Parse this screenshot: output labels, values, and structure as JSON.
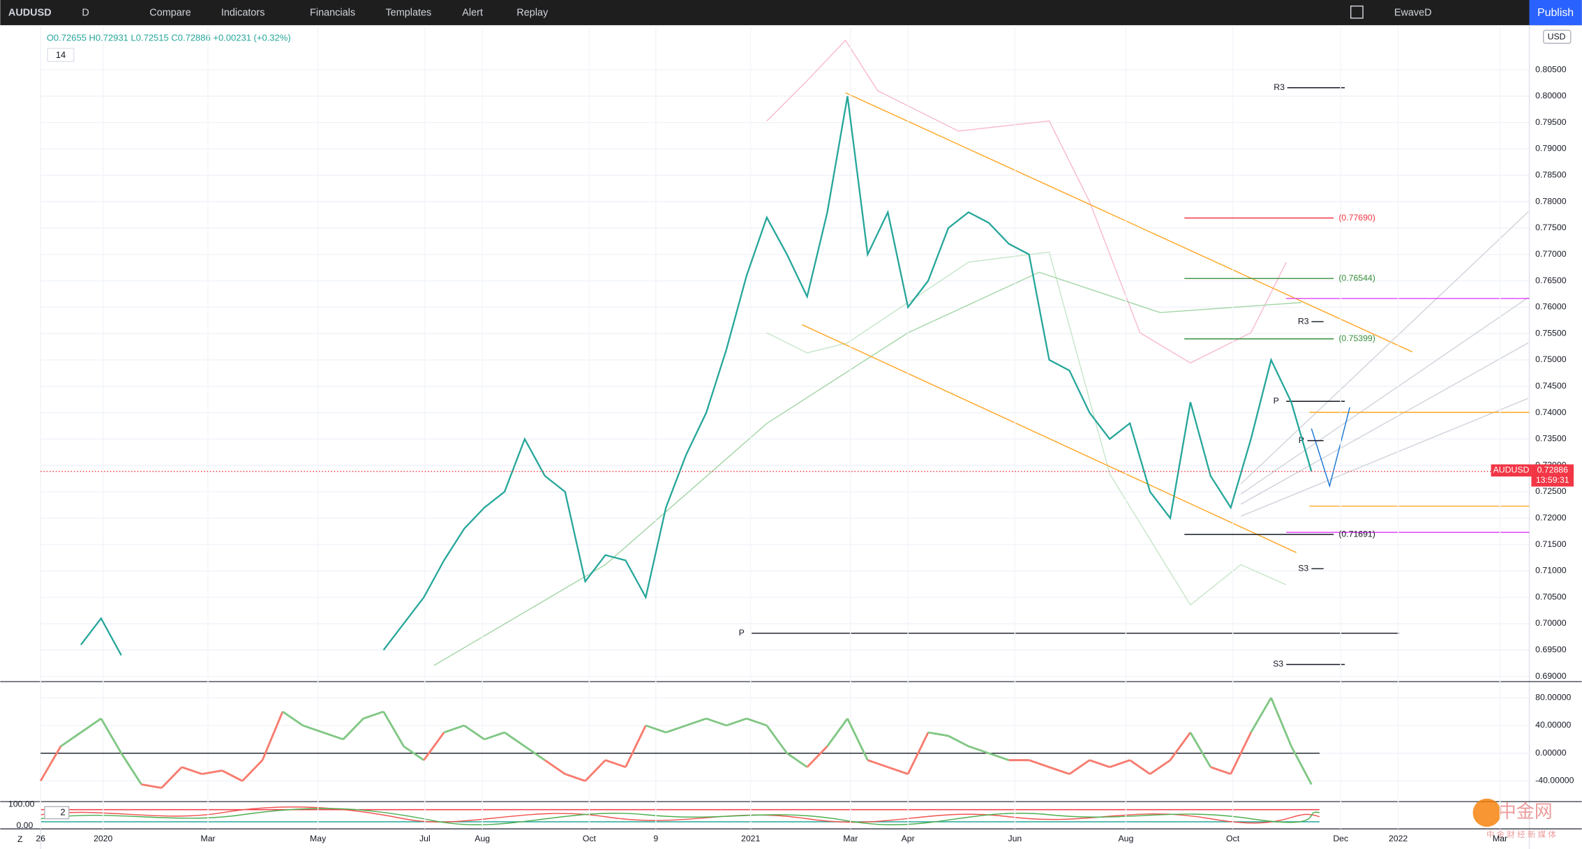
{
  "toolbar": {
    "symbol": "AUDUSD",
    "interval": "D",
    "buttons": [
      "Compare",
      "Indicators",
      "Financials",
      "Templates",
      "Alert",
      "Replay"
    ],
    "layout_name": "EwaveD",
    "publish": "Publish"
  },
  "legend": {
    "ohlc": "O0.72655 H0.72931 L0.72515 C0.72886 +0.00231 (+0.32%)",
    "length": "14"
  },
  "currency": "USD",
  "price_tag": {
    "symbol": "AUDUSD",
    "price": "0.72886",
    "countdown": "13:59:31"
  },
  "pivot_labels": [
    "R3",
    "R3",
    "P",
    "P",
    "P",
    "S3",
    "S3"
  ],
  "x_axis_labels": [
    "26",
    "2020",
    "Mar",
    "May",
    "Jul",
    "Aug",
    "Oct",
    "9",
    "2021",
    "Mar",
    "Apr",
    "Jun",
    "Aug",
    "Oct",
    "Dec",
    "2022",
    "Mar"
  ],
  "stoch_panel": {
    "ticks": [
      "100.00",
      "0.00"
    ],
    "label": "2"
  },
  "corner": "Z",
  "watermark": {
    "title": "中金网",
    "subtitle": "中 金 财 经 新 媒 体"
  },
  "chart_data": [
    {
      "type": "line",
      "color": "#26a69a",
      "values": [
        null,
        null,
        0.696,
        0.701,
        0.694,
        null,
        null,
        null,
        null,
        null,
        null,
        null,
        null,
        null,
        null,
        null,
        null,
        0.695,
        0.7,
        0.705,
        0.712,
        0.718,
        0.722,
        0.725,
        0.735,
        0.728,
        0.725,
        0.708,
        0.713,
        0.712,
        0.705,
        0.722,
        0.732,
        0.74,
        0.752,
        0.766,
        0.777,
        0.77,
        0.762,
        0.778,
        0.8,
        0.77,
        0.778,
        0.76,
        0.765,
        0.775,
        0.778,
        0.776,
        0.772,
        0.77,
        0.75,
        0.748,
        0.74,
        0.735,
        0.738,
        0.725,
        0.72,
        0.742,
        0.728,
        0.722,
        0.735,
        0.75,
        0.742,
        0.72886
      ],
      "ylim": [
        0.6892,
        0.8125
      ],
      "yticks": [
        {
          "value": 0.69,
          "label": "0.69000"
        },
        {
          "value": 0.695,
          "label": "0.69500"
        },
        {
          "value": 0.7,
          "label": "0.70000"
        },
        {
          "value": 0.705,
          "label": "0.70500"
        },
        {
          "value": 0.71,
          "label": "0.71000"
        },
        {
          "value": 0.715,
          "label": "0.71500"
        },
        {
          "value": 0.72,
          "label": "0.72000"
        },
        {
          "value": 0.725,
          "label": "0.72500"
        },
        {
          "value": 0.73,
          "label": "0.73000"
        },
        {
          "value": 0.735,
          "label": "0.73500"
        },
        {
          "value": 0.74,
          "label": "0.74000"
        },
        {
          "value": 0.745,
          "label": "0.74500"
        },
        {
          "value": 0.75,
          "label": "0.75000"
        },
        {
          "value": 0.755,
          "label": "0.75500"
        },
        {
          "value": 0.76,
          "label": "0.76000"
        },
        {
          "value": 0.765,
          "label": "0.76500"
        },
        {
          "value": 0.77,
          "label": "0.77000"
        },
        {
          "value": 0.775,
          "label": "0.77500"
        },
        {
          "value": 0.78,
          "label": "0.78000"
        },
        {
          "value": 0.785,
          "label": "0.78500"
        },
        {
          "value": 0.79,
          "label": "0.79000"
        },
        {
          "value": 0.795,
          "label": "0.79500"
        },
        {
          "value": 0.8,
          "label": "0.80000"
        },
        {
          "value": 0.805,
          "label": "0.80500"
        }
      ],
      "grid": true,
      "levels": [
        {
          "value": 0.7769,
          "label": "(0.77690)",
          "color": "#f23645"
        },
        {
          "value": 0.76544,
          "label": "(0.76544)",
          "color": "#388e3c"
        },
        {
          "value": 0.75399,
          "label": "(0.75399)",
          "color": "#388e3c"
        },
        {
          "value": 0.71691,
          "label": "(0.71691)",
          "color": "#131722"
        }
      ]
    },
    {
      "type": "oscillator",
      "up_color": "#81c784",
      "down_color": "#f77c6f",
      "values": [
        -40,
        10,
        30,
        50,
        0,
        -45,
        -50,
        -20,
        -30,
        -25,
        -40,
        -10,
        60,
        40,
        30,
        20,
        50,
        60,
        10,
        -10,
        30,
        40,
        20,
        30,
        10,
        -10,
        -30,
        -40,
        -10,
        -20,
        40,
        30,
        40,
        50,
        40,
        50,
        40,
        0,
        -20,
        10,
        50,
        -10,
        -20,
        -30,
        30,
        25,
        10,
        0,
        -10,
        -10,
        -20,
        -30,
        -10,
        -20,
        -10,
        -30,
        -10,
        30,
        -20,
        -30,
        30,
        80,
        10,
        -45
      ],
      "ylim": [
        -69.8,
        101.8
      ],
      "yticks": [
        {
          "value": 80,
          "label": "80.00000"
        },
        {
          "value": 40,
          "label": "40.00000"
        },
        {
          "value": 0,
          "label": "0.00000"
        },
        {
          "value": -40,
          "label": "-40.00000"
        }
      ]
    }
  ]
}
